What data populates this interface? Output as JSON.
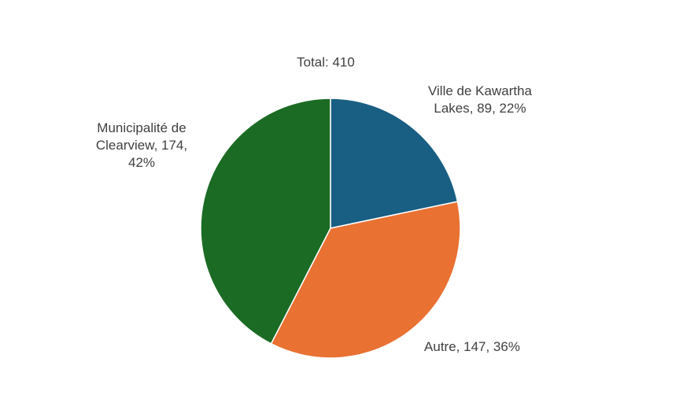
{
  "chart_data": {
    "type": "pie",
    "annotation": "Total: 410",
    "values": [
      89,
      147,
      174
    ],
    "value_labels": [
      "Ville de Kawartha Lakes, 89, 22%",
      "Autre, 147, 36%",
      "Municipalité de Clearview, 174, 42%"
    ],
    "colors": [
      "#195e83",
      "#e97132",
      "#1b6b24"
    ]
  }
}
